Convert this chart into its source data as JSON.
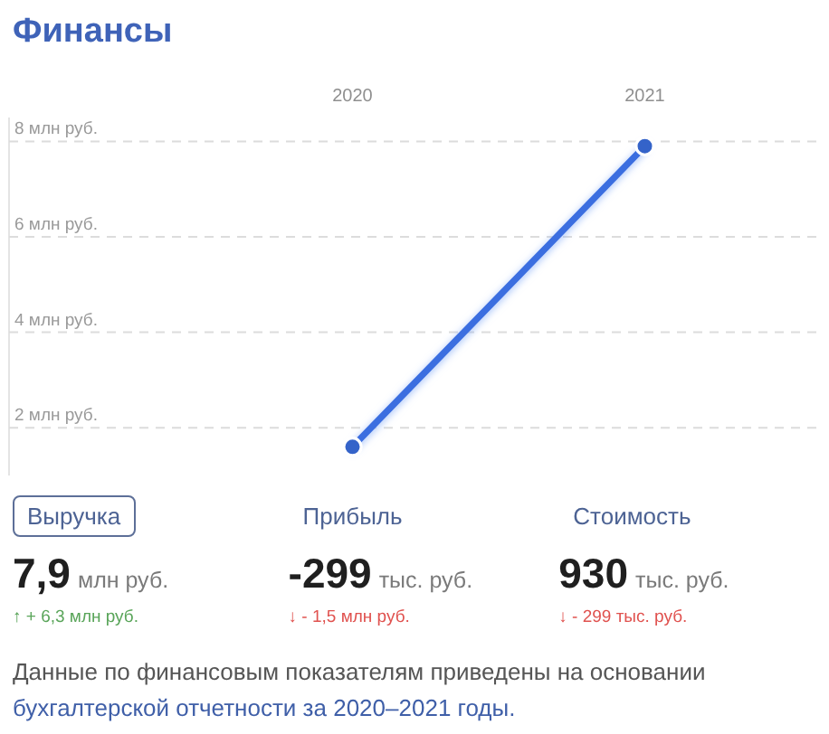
{
  "chart_data": [
    {
      "type": "line",
      "title": "Финансы",
      "categories": [
        "2020",
        "2021"
      ],
      "values": [
        1.6,
        7.9
      ],
      "color": "#3a6ee0",
      "ylim": [
        1,
        8.5
      ],
      "yticks": [
        {
          "value": 2,
          "label": "2 млн руб."
        },
        {
          "value": 4,
          "label": "4 млн руб."
        },
        {
          "value": 6,
          "label": "6 млн руб."
        },
        {
          "value": 8,
          "label": "8 млн руб."
        }
      ],
      "grid": "y",
      "marker": "circle"
    },
    {
      "type": "other",
      "annotations": [
        "Выручка",
        "7,9",
        "млн руб.",
        "↑ + 6,3 млн руб.",
        "Прибыль",
        "-299",
        "тыс. руб.",
        "↓ - 1,5 млн руб.",
        "Стоимость",
        "930",
        "тыс. руб.",
        "↓ - 299 тыс. руб.",
        "Данные по финансовым показателям приведены на основании",
        "бухгалтерской отчетности за 2020–2021 годы."
      ]
    }
  ]
}
